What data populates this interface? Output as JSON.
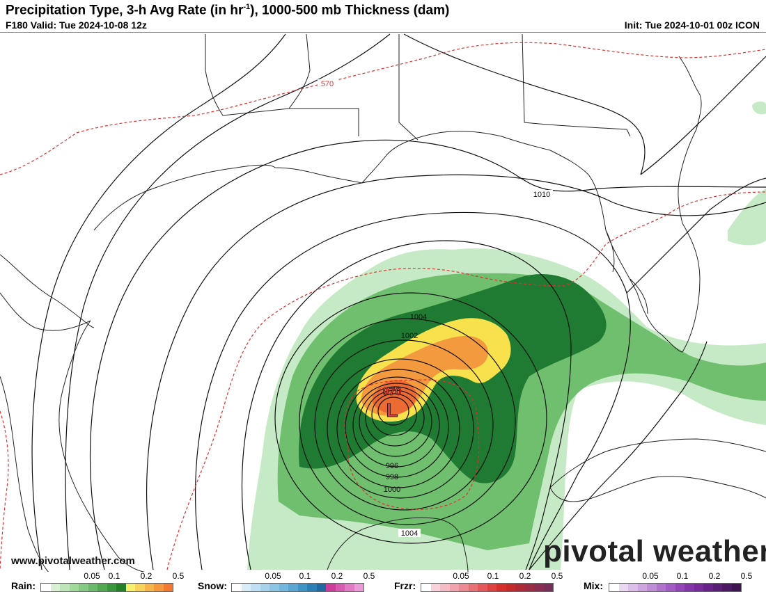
{
  "header": {
    "title_main": "Precipitation Type, 3-h Avg Rate (in hr",
    "title_sup": "-1",
    "title_rest": "), 1000-500 mb Thickness (dam)",
    "valid": "F180 Valid: Tue 2024-10-08 12z",
    "init": "Init: Tue 2024-10-01 00z ICON"
  },
  "map": {
    "low_label": "L",
    "low_pressure": "970",
    "thickness_label": "570",
    "isobar_labels": [
      "1010",
      "1004",
      "1002",
      "996",
      "998",
      "1000",
      "1004"
    ],
    "colors": {
      "rain_light": "#c6e9c6",
      "rain_mid": "#6fbf6f",
      "rain_dark": "#1f7a32",
      "yellow": "#f7e14c",
      "orange": "#f49a3e",
      "red_orange": "#ec6b33",
      "thickness_line": "#e03030"
    }
  },
  "footer": {
    "website": "www.pivotalweather.com",
    "brand": "pivotal weather"
  },
  "legend": {
    "rain": {
      "label": "Rain:",
      "ticks": [
        "0.05",
        "0.1",
        "0.2",
        "0.5"
      ],
      "colors": [
        "#ffffff",
        "#d9f0d3",
        "#bde5b8",
        "#a1d99b",
        "#86c982",
        "#6bb96a",
        "#52a853",
        "#3a973d",
        "#237f2a",
        "#f7f06a",
        "#f7d35a",
        "#f6b54b",
        "#f4973d",
        "#f2792f"
      ]
    },
    "snow": {
      "label": "Snow:",
      "ticks": [
        "0.05",
        "0.1",
        "0.2",
        "0.5"
      ],
      "colors": [
        "#ffffff",
        "#d7ecf7",
        "#bfe0f2",
        "#a6d3ec",
        "#8dc5e5",
        "#74b7de",
        "#5aa7d4",
        "#3f94c7",
        "#2a7fb6",
        "#1f6aa0",
        "#cc3d9b",
        "#d75bb0",
        "#e07bc4",
        "#e99ad7"
      ]
    },
    "frzr": {
      "label": "Frzr:",
      "ticks": [
        "0.05",
        "0.1",
        "0.2",
        "0.5"
      ],
      "colors": [
        "#ffffff",
        "#f7d3dc",
        "#f4bcc5",
        "#f0a3ad",
        "#ec8a93",
        "#e87077",
        "#e4575b",
        "#df4040",
        "#d62d2d",
        "#c42a2a",
        "#b02a36",
        "#9c2c44",
        "#8a2d50",
        "#782e5a"
      ]
    },
    "mix": {
      "label": "Mix:",
      "ticks": [
        "0.05",
        "0.1",
        "0.2",
        "0.5"
      ],
      "colors": [
        "#ffffff",
        "#ead7f0",
        "#dcbfe8",
        "#cda6df",
        "#bf8dd6",
        "#b074cd",
        "#a25cc3",
        "#9446b8",
        "#8535ab",
        "#762a9c",
        "#672389",
        "#591e76",
        "#4b1a63",
        "#3d1650"
      ]
    }
  }
}
